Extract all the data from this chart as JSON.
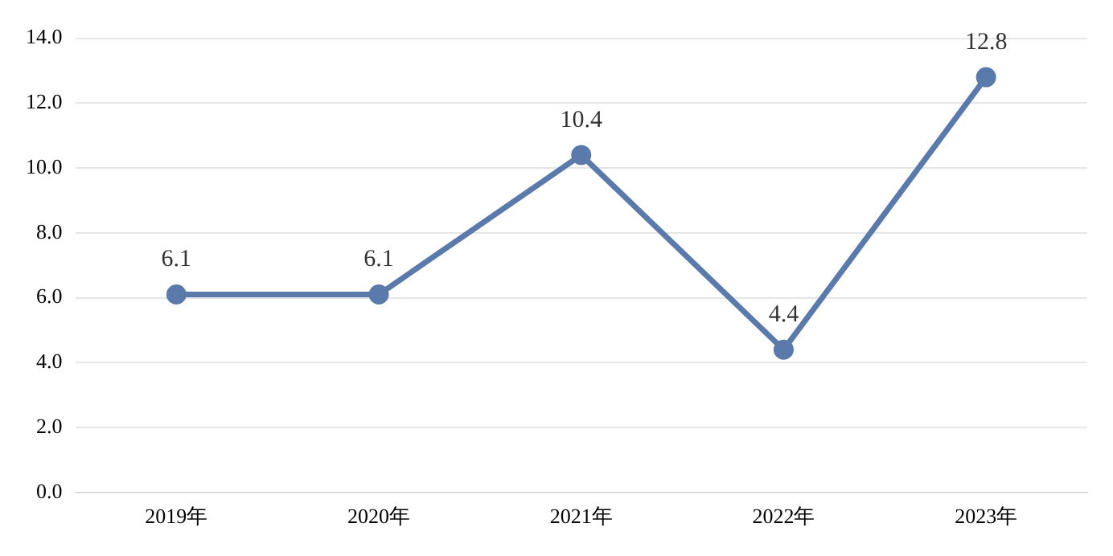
{
  "chart_data": {
    "type": "line",
    "categories": [
      "2019年",
      "2020年",
      "2021年",
      "2022年",
      "2023年"
    ],
    "series": [
      {
        "color": "#5a7aac",
        "values": [
          6.1,
          6.1,
          10.4,
          4.4,
          12.8
        ]
      }
    ],
    "ylim": [
      0,
      14
    ],
    "yticks": [
      {
        "value": 0,
        "label": "0.0"
      },
      {
        "value": 2,
        "label": "2.0"
      },
      {
        "value": 4,
        "label": "4.0"
      },
      {
        "value": 6,
        "label": "6.0"
      },
      {
        "value": 8,
        "label": "8.0"
      },
      {
        "value": 10,
        "label": "10.0"
      },
      {
        "value": 12,
        "label": "12.0"
      },
      {
        "value": 14,
        "label": "14.0"
      }
    ],
    "grid": "y",
    "legend": false,
    "marker": "circle",
    "line_style": "solid",
    "data_labels": true
  }
}
